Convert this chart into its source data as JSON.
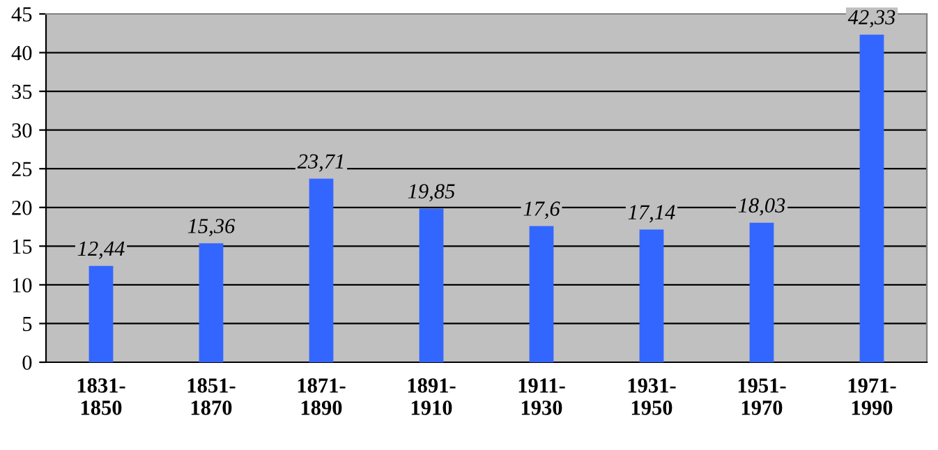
{
  "chart_data": {
    "type": "bar",
    "categories": [
      "1831-\n1850",
      "1851-\n1870",
      "1871-\n1890",
      "1891-\n1910",
      "1911-\n1930",
      "1931-\n1950",
      "1951-\n1970",
      "1971-\n1990"
    ],
    "values": [
      12.44,
      15.36,
      23.71,
      19.85,
      17.6,
      17.14,
      18.03,
      42.33
    ],
    "value_labels": [
      "12,44",
      "15,36",
      "23,71",
      "19,85",
      "17,6",
      "17,14",
      "18,03",
      "42,33"
    ],
    "color": "#3366ff",
    "ylim": [
      0,
      45
    ],
    "yticks": [
      0,
      5,
      10,
      15,
      20,
      25,
      30,
      35,
      40,
      45
    ],
    "grid": "y"
  }
}
